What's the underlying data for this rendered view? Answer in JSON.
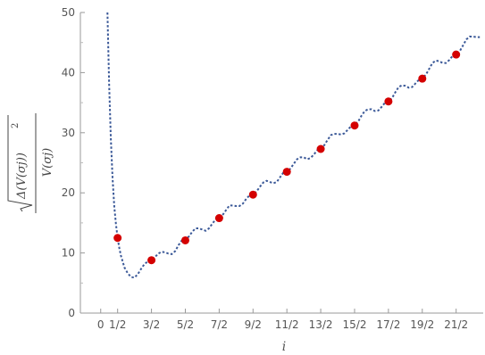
{
  "chart_data": {
    "type": "scatter",
    "xlabel": "i",
    "ylabel": {
      "numerator": "Δ(V(σj))",
      "exponent": "2",
      "denominator": "V(σj)"
    },
    "xlim": [
      -0.6,
      11.3
    ],
    "ylim": [
      0,
      50
    ],
    "x_ticks": [
      {
        "value": 0,
        "label": "0"
      },
      {
        "value": 0.5,
        "label": "1/2"
      },
      {
        "value": 1.5,
        "label": "3/2"
      },
      {
        "value": 2.5,
        "label": "5/2"
      },
      {
        "value": 3.5,
        "label": "7/2"
      },
      {
        "value": 4.5,
        "label": "9/2"
      },
      {
        "value": 5.5,
        "label": "11/2"
      },
      {
        "value": 6.5,
        "label": "13/2"
      },
      {
        "value": 7.5,
        "label": "15/2"
      },
      {
        "value": 8.5,
        "label": "17/2"
      },
      {
        "value": 9.5,
        "label": "19/2"
      },
      {
        "value": 10.5,
        "label": "21/2"
      }
    ],
    "y_ticks": [
      0,
      10,
      20,
      30,
      40,
      50
    ],
    "series": [
      {
        "style": "points",
        "color": "#d40000",
        "x": [
          0.5,
          1.5,
          2.5,
          3.5,
          4.5,
          5.5,
          6.5,
          7.5,
          8.5,
          9.5,
          10.5
        ],
        "y": [
          12.5,
          8.8,
          12.1,
          15.8,
          19.7,
          23.5,
          27.3,
          31.2,
          35.2,
          39.0,
          43.0
        ]
      },
      {
        "style": "dashed-line",
        "color": "#3b5998",
        "x": [
          0.2,
          0.25,
          0.3,
          0.35,
          0.4,
          0.45,
          0.5,
          0.55,
          0.6,
          0.7,
          0.8,
          0.9,
          1.0,
          1.1,
          1.2,
          1.3,
          1.4,
          1.5,
          1.6,
          1.7,
          1.8,
          1.9,
          2.0,
          2.1,
          2.2,
          2.3,
          2.4,
          2.5,
          2.6,
          2.7,
          2.8,
          2.9,
          3.0,
          3.1,
          3.2,
          3.3,
          3.4,
          3.5,
          3.6,
          3.7,
          3.8,
          3.9,
          4.0,
          4.1,
          4.2,
          4.3,
          4.4,
          4.5,
          4.6,
          4.7,
          4.8,
          4.9,
          5.0,
          5.1,
          5.2,
          5.3,
          5.4,
          5.5,
          5.6,
          5.7,
          5.8,
          5.9,
          6.0,
          6.1,
          6.2,
          6.3,
          6.4,
          6.5,
          6.6,
          6.7,
          6.8,
          6.9,
          7.0,
          7.1,
          7.2,
          7.3,
          7.4,
          7.5,
          7.6,
          7.7,
          7.8,
          7.9,
          8.0,
          8.1,
          8.2,
          8.3,
          8.4,
          8.5,
          8.6,
          8.7,
          8.8,
          8.9,
          9.0,
          9.1,
          9.2,
          9.3,
          9.4,
          9.5,
          9.6,
          9.7,
          9.8,
          9.9,
          10.0,
          10.1,
          10.2,
          10.3,
          10.4,
          10.5,
          10.6,
          10.7,
          10.8,
          10.9,
          11.0,
          11.1,
          11.2
        ],
        "y": [
          50.0,
          38.0,
          29.0,
          22.5,
          17.8,
          14.8,
          12.5,
          10.8,
          9.5,
          7.6,
          6.6,
          6.0,
          5.9,
          6.5,
          7.4,
          8.2,
          8.6,
          8.8,
          9.3,
          9.9,
          10.2,
          10.1,
          9.9,
          9.8,
          10.3,
          11.3,
          12.1,
          12.3,
          12.7,
          13.5,
          14.1,
          14.1,
          13.9,
          13.7,
          14.1,
          14.9,
          15.6,
          15.9,
          16.3,
          17.1,
          17.9,
          17.9,
          17.8,
          17.8,
          18.2,
          19.0,
          19.6,
          19.8,
          20.2,
          21.0,
          21.7,
          22.0,
          21.8,
          21.6,
          21.8,
          22.6,
          23.4,
          23.6,
          24.0,
          24.8,
          25.6,
          25.9,
          25.9,
          25.6,
          25.8,
          26.4,
          27.1,
          27.4,
          27.9,
          28.8,
          29.6,
          29.8,
          29.8,
          29.7,
          29.9,
          30.5,
          31.1,
          31.4,
          31.8,
          32.8,
          33.6,
          33.9,
          33.9,
          33.6,
          33.7,
          34.3,
          35.0,
          35.3,
          35.7,
          36.7,
          37.6,
          37.9,
          37.8,
          37.5,
          37.6,
          38.2,
          38.8,
          39.1,
          39.6,
          40.6,
          41.6,
          42.0,
          41.9,
          41.6,
          41.6,
          42.1,
          42.8,
          43.0,
          43.5,
          44.5,
          45.5,
          46.0,
          46.0,
          45.9,
          45.9
        ]
      }
    ],
    "grid": false,
    "legend": "none"
  }
}
